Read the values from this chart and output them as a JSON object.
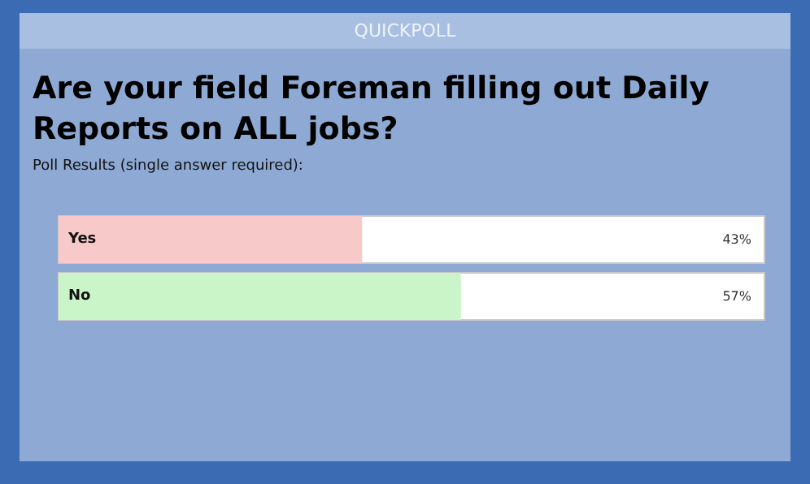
{
  "chart_data": {
    "type": "bar",
    "orientation": "horizontal",
    "title": "QUICKPOLL",
    "subtitle": "Are your field Foreman filling out Daily\nReports on ALL jobs?",
    "annotations": [
      "Poll Results (single answer required):"
    ],
    "categories": [
      "Yes",
      "No"
    ],
    "values": [
      43,
      57
    ],
    "colors": [
      "#f8c9c9",
      "#c9f5c9"
    ],
    "value_labels": [
      "43%",
      "57%"
    ],
    "xlim": [
      0,
      100
    ]
  }
}
